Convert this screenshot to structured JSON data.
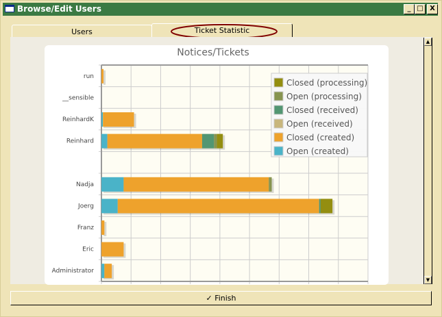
{
  "window": {
    "title": "Browse/Edit Users",
    "minimize": "_",
    "maximize": "□",
    "close": "X"
  },
  "tabs": [
    {
      "label": "Users",
      "active": false
    },
    {
      "label": "Ticket Statistic",
      "active": true
    }
  ],
  "finish_label": "Finish",
  "chart_data": {
    "type": "bar",
    "orientation": "horizontal",
    "stacked": true,
    "title": "Notices/Tickets",
    "categories": [
      "run",
      "__sensible",
      "ReinhardK",
      "Reinhard",
      "",
      "Nadja",
      "Joerg",
      "Franz",
      "Eric",
      "Administrator"
    ],
    "xlim": [
      0,
      90
    ],
    "grid": true,
    "legend_position": "top-right",
    "series": [
      {
        "name": "Open (created)",
        "color": "#4ab3c8",
        "values": [
          0,
          0,
          0.5,
          2,
          0,
          7.5,
          5.5,
          0,
          0,
          1
        ]
      },
      {
        "name": "Closed (created)",
        "color": "#eea22c",
        "values": [
          0.7,
          0,
          10.5,
          32,
          0,
          49,
          68,
          1,
          7.5,
          2.5
        ]
      },
      {
        "name": "Open (received)",
        "color": "#c8b67c",
        "values": [
          0,
          0,
          0,
          0,
          0,
          0,
          0,
          0,
          0,
          0
        ]
      },
      {
        "name": "Closed (received)",
        "color": "#529672",
        "values": [
          0,
          0,
          0,
          4,
          0,
          0,
          0.5,
          0,
          0,
          0
        ]
      },
      {
        "name": "Open (processing)",
        "color": "#879450",
        "values": [
          0,
          0,
          0,
          1,
          0,
          1,
          0,
          0,
          0,
          0
        ]
      },
      {
        "name": "Closed (processing)",
        "color": "#948e10",
        "values": [
          0,
          0,
          0,
          2,
          0,
          0,
          4,
          0,
          0,
          0
        ]
      }
    ]
  }
}
